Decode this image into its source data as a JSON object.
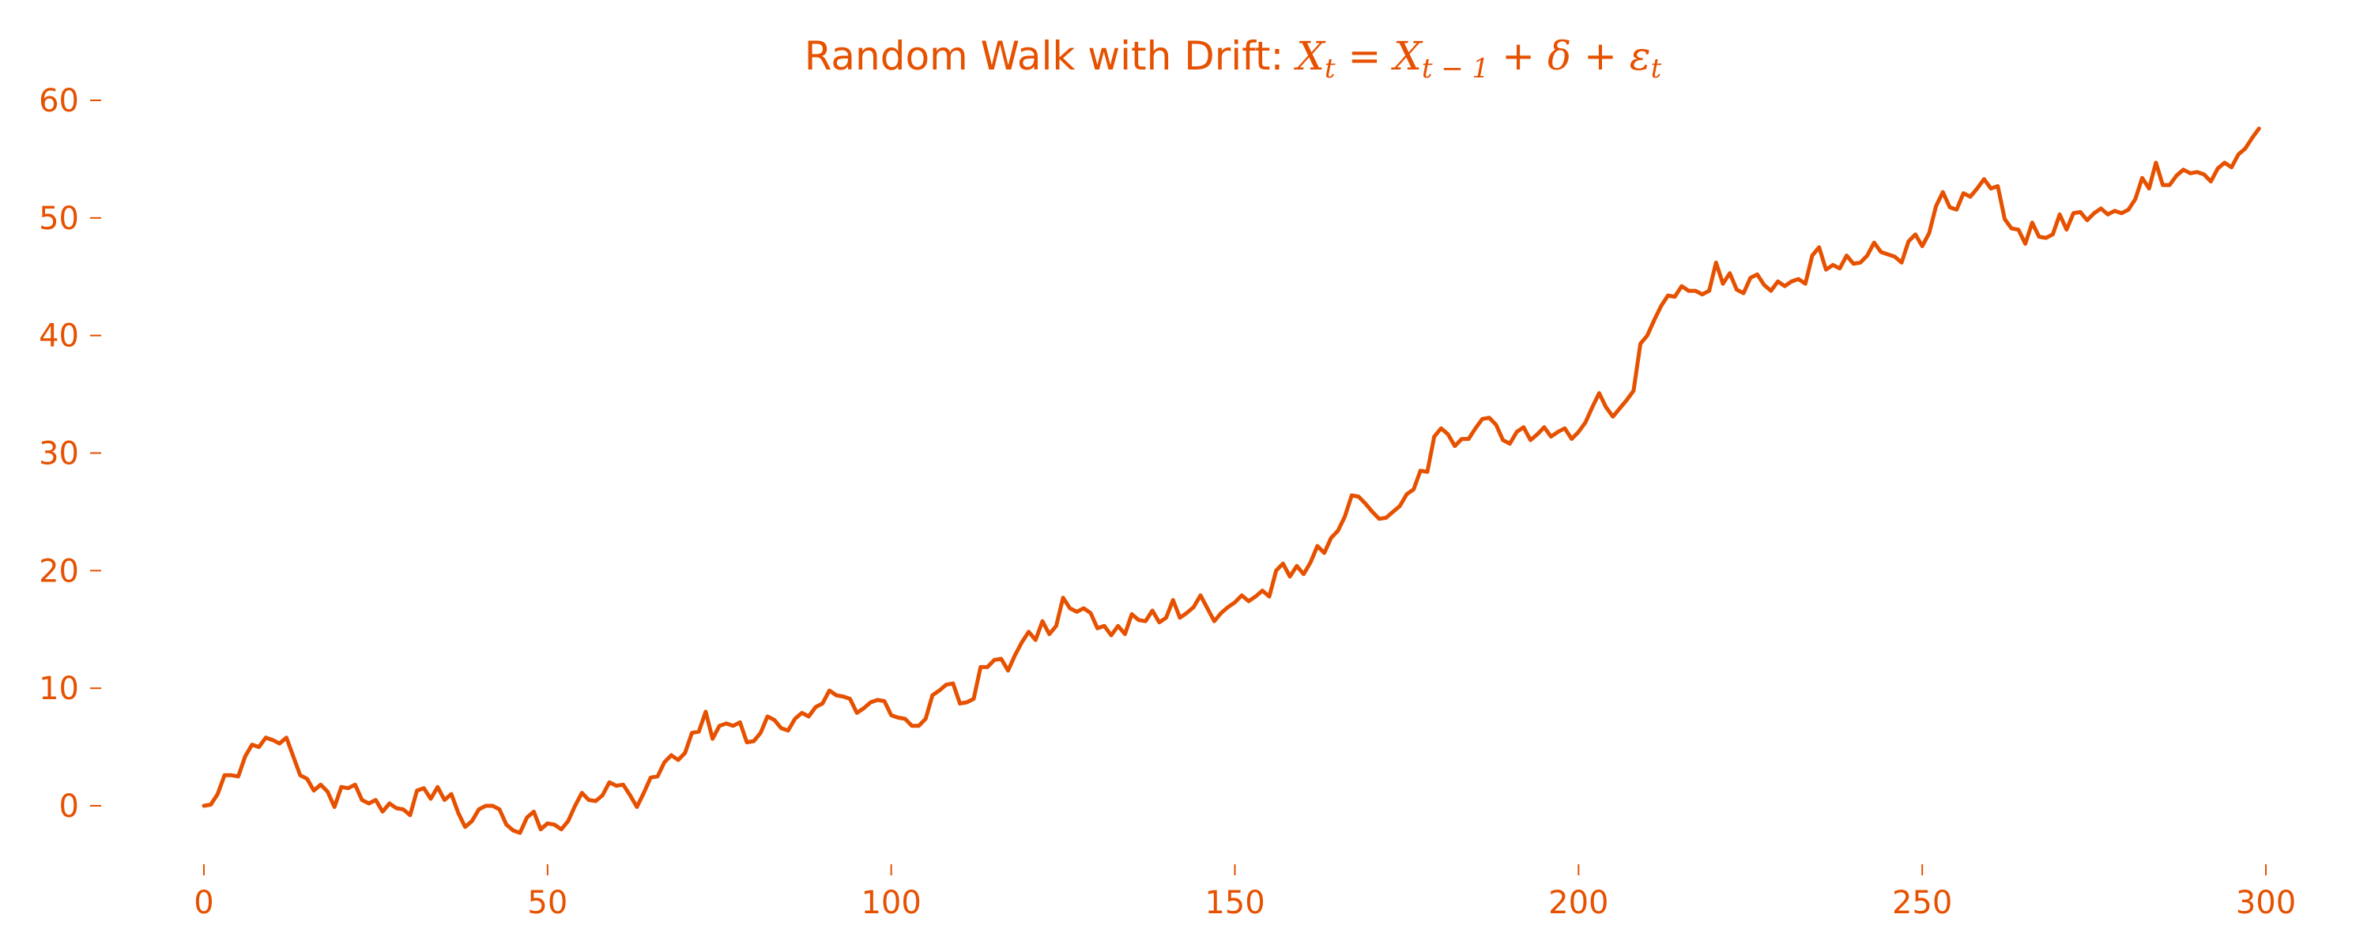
{
  "chart_data": {
    "type": "line",
    "title": "Random Walk with Drift: X_t = X_{t−1} + δ + ε_t",
    "title_parts": {
      "prefix": "Random Walk with Drift: ",
      "X": "X",
      "sub_t": "t",
      "equals": " = ",
      "sub_t_minus_1": "t − 1",
      "plus": " + ",
      "delta": "δ",
      "epsilon": "ε"
    },
    "xlabel": "",
    "ylabel": "",
    "xlim": [
      -15,
      314
    ],
    "ylim": [
      -5.5,
      61
    ],
    "x_ticks": [
      0,
      50,
      100,
      150,
      200,
      250,
      300
    ],
    "y_ticks": [
      0,
      10,
      20,
      30,
      40,
      50,
      60
    ],
    "grid": false,
    "legend": "none",
    "color": "#e65100",
    "series": [
      {
        "x_start": 0,
        "x_step": 1,
        "values": [
          0.0,
          0.1,
          1.0,
          2.6,
          2.6,
          2.5,
          4.2,
          5.2,
          5.0,
          5.8,
          5.6,
          5.3,
          5.8,
          4.2,
          2.6,
          2.3,
          1.3,
          1.8,
          1.2,
          -0.1,
          1.6,
          1.5,
          1.8,
          0.5,
          0.2,
          0.5,
          -0.5,
          0.2,
          -0.2,
          -0.3,
          -0.8,
          1.3,
          1.5,
          0.6,
          1.6,
          0.5,
          1.0,
          -0.6,
          -1.8,
          -1.3,
          -0.3,
          0.0,
          0.0,
          -0.3,
          -1.6,
          -2.1,
          -2.3,
          -1.0,
          -0.5,
          -2.0,
          -1.5,
          -1.6,
          -2.0,
          -1.3,
          0.0,
          1.1,
          0.5,
          0.4,
          0.9,
          2.0,
          1.7,
          1.8,
          0.9,
          -0.1,
          1.1,
          2.4,
          2.5,
          3.7,
          4.3,
          3.9,
          4.5,
          6.2,
          6.3,
          8.0,
          5.7,
          6.8,
          7.0,
          6.8,
          7.1,
          5.4,
          5.5,
          6.2,
          7.6,
          7.3,
          6.6,
          6.4,
          7.4,
          7.9,
          7.6,
          8.4,
          8.7,
          9.8,
          9.4,
          9.3,
          9.1,
          7.9,
          8.3,
          8.8,
          9.0,
          8.9,
          7.7,
          7.5,
          7.4,
          6.8,
          6.8,
          7.4,
          9.4,
          9.8,
          10.3,
          10.4,
          8.7,
          8.8,
          9.1,
          11.8,
          11.8,
          12.4,
          12.5,
          11.5,
          12.8,
          13.9,
          14.8,
          14.1,
          15.7,
          14.6,
          15.3,
          17.7,
          16.8,
          16.5,
          16.8,
          16.4,
          15.1,
          15.3,
          14.5,
          15.3,
          14.6,
          16.3,
          15.8,
          15.7,
          16.6,
          15.6,
          16.0,
          17.5,
          16.0,
          16.4,
          16.9,
          17.9,
          16.8,
          15.7,
          16.4,
          16.9,
          17.3,
          17.9,
          17.4,
          17.8,
          18.3,
          17.8,
          20.0,
          20.6,
          19.5,
          20.4,
          19.7,
          20.7,
          22.1,
          21.5,
          22.8,
          23.4,
          24.6,
          26.4,
          26.3,
          25.7,
          25.0,
          24.4,
          24.5,
          25.0,
          25.5,
          26.5,
          26.9,
          28.5,
          28.4,
          31.4,
          32.1,
          31.6,
          30.6,
          31.2,
          31.2,
          32.1,
          32.9,
          33.0,
          32.4,
          31.1,
          30.8,
          31.8,
          32.2,
          31.1,
          31.6,
          32.2,
          31.4,
          31.8,
          32.1,
          31.2,
          31.8,
          32.6,
          33.9,
          35.1,
          33.9,
          33.1,
          33.8,
          34.5,
          35.3,
          39.3,
          40.0,
          41.3,
          42.5,
          43.4,
          43.3,
          44.2,
          43.8,
          43.8,
          43.5,
          43.8,
          46.2,
          44.4,
          45.3,
          43.9,
          43.6,
          44.9,
          45.2,
          44.3,
          43.8,
          44.6,
          44.2,
          44.6,
          44.8,
          44.4,
          46.8,
          47.5,
          45.6,
          46.0,
          45.7,
          46.8,
          46.1,
          46.2,
          46.8,
          47.9,
          47.1,
          46.9,
          46.7,
          46.2,
          48.0,
          48.6,
          47.6,
          48.7,
          51.0,
          52.2,
          50.9,
          50.7,
          52.1,
          51.8,
          52.5,
          53.3,
          52.5,
          52.7,
          49.9,
          49.1,
          49.0,
          47.8,
          49.6,
          48.4,
          48.3,
          48.6,
          50.3,
          49.0,
          50.4,
          50.5,
          49.8,
          50.4,
          50.8,
          50.3,
          50.6,
          50.4,
          50.7,
          51.6,
          53.4,
          52.5,
          54.7,
          52.8,
          52.8,
          53.6,
          54.1,
          53.8,
          53.9,
          53.7,
          53.1,
          54.2,
          54.7,
          54.3,
          55.4,
          55.9,
          56.8,
          57.6
        ]
      }
    ]
  }
}
